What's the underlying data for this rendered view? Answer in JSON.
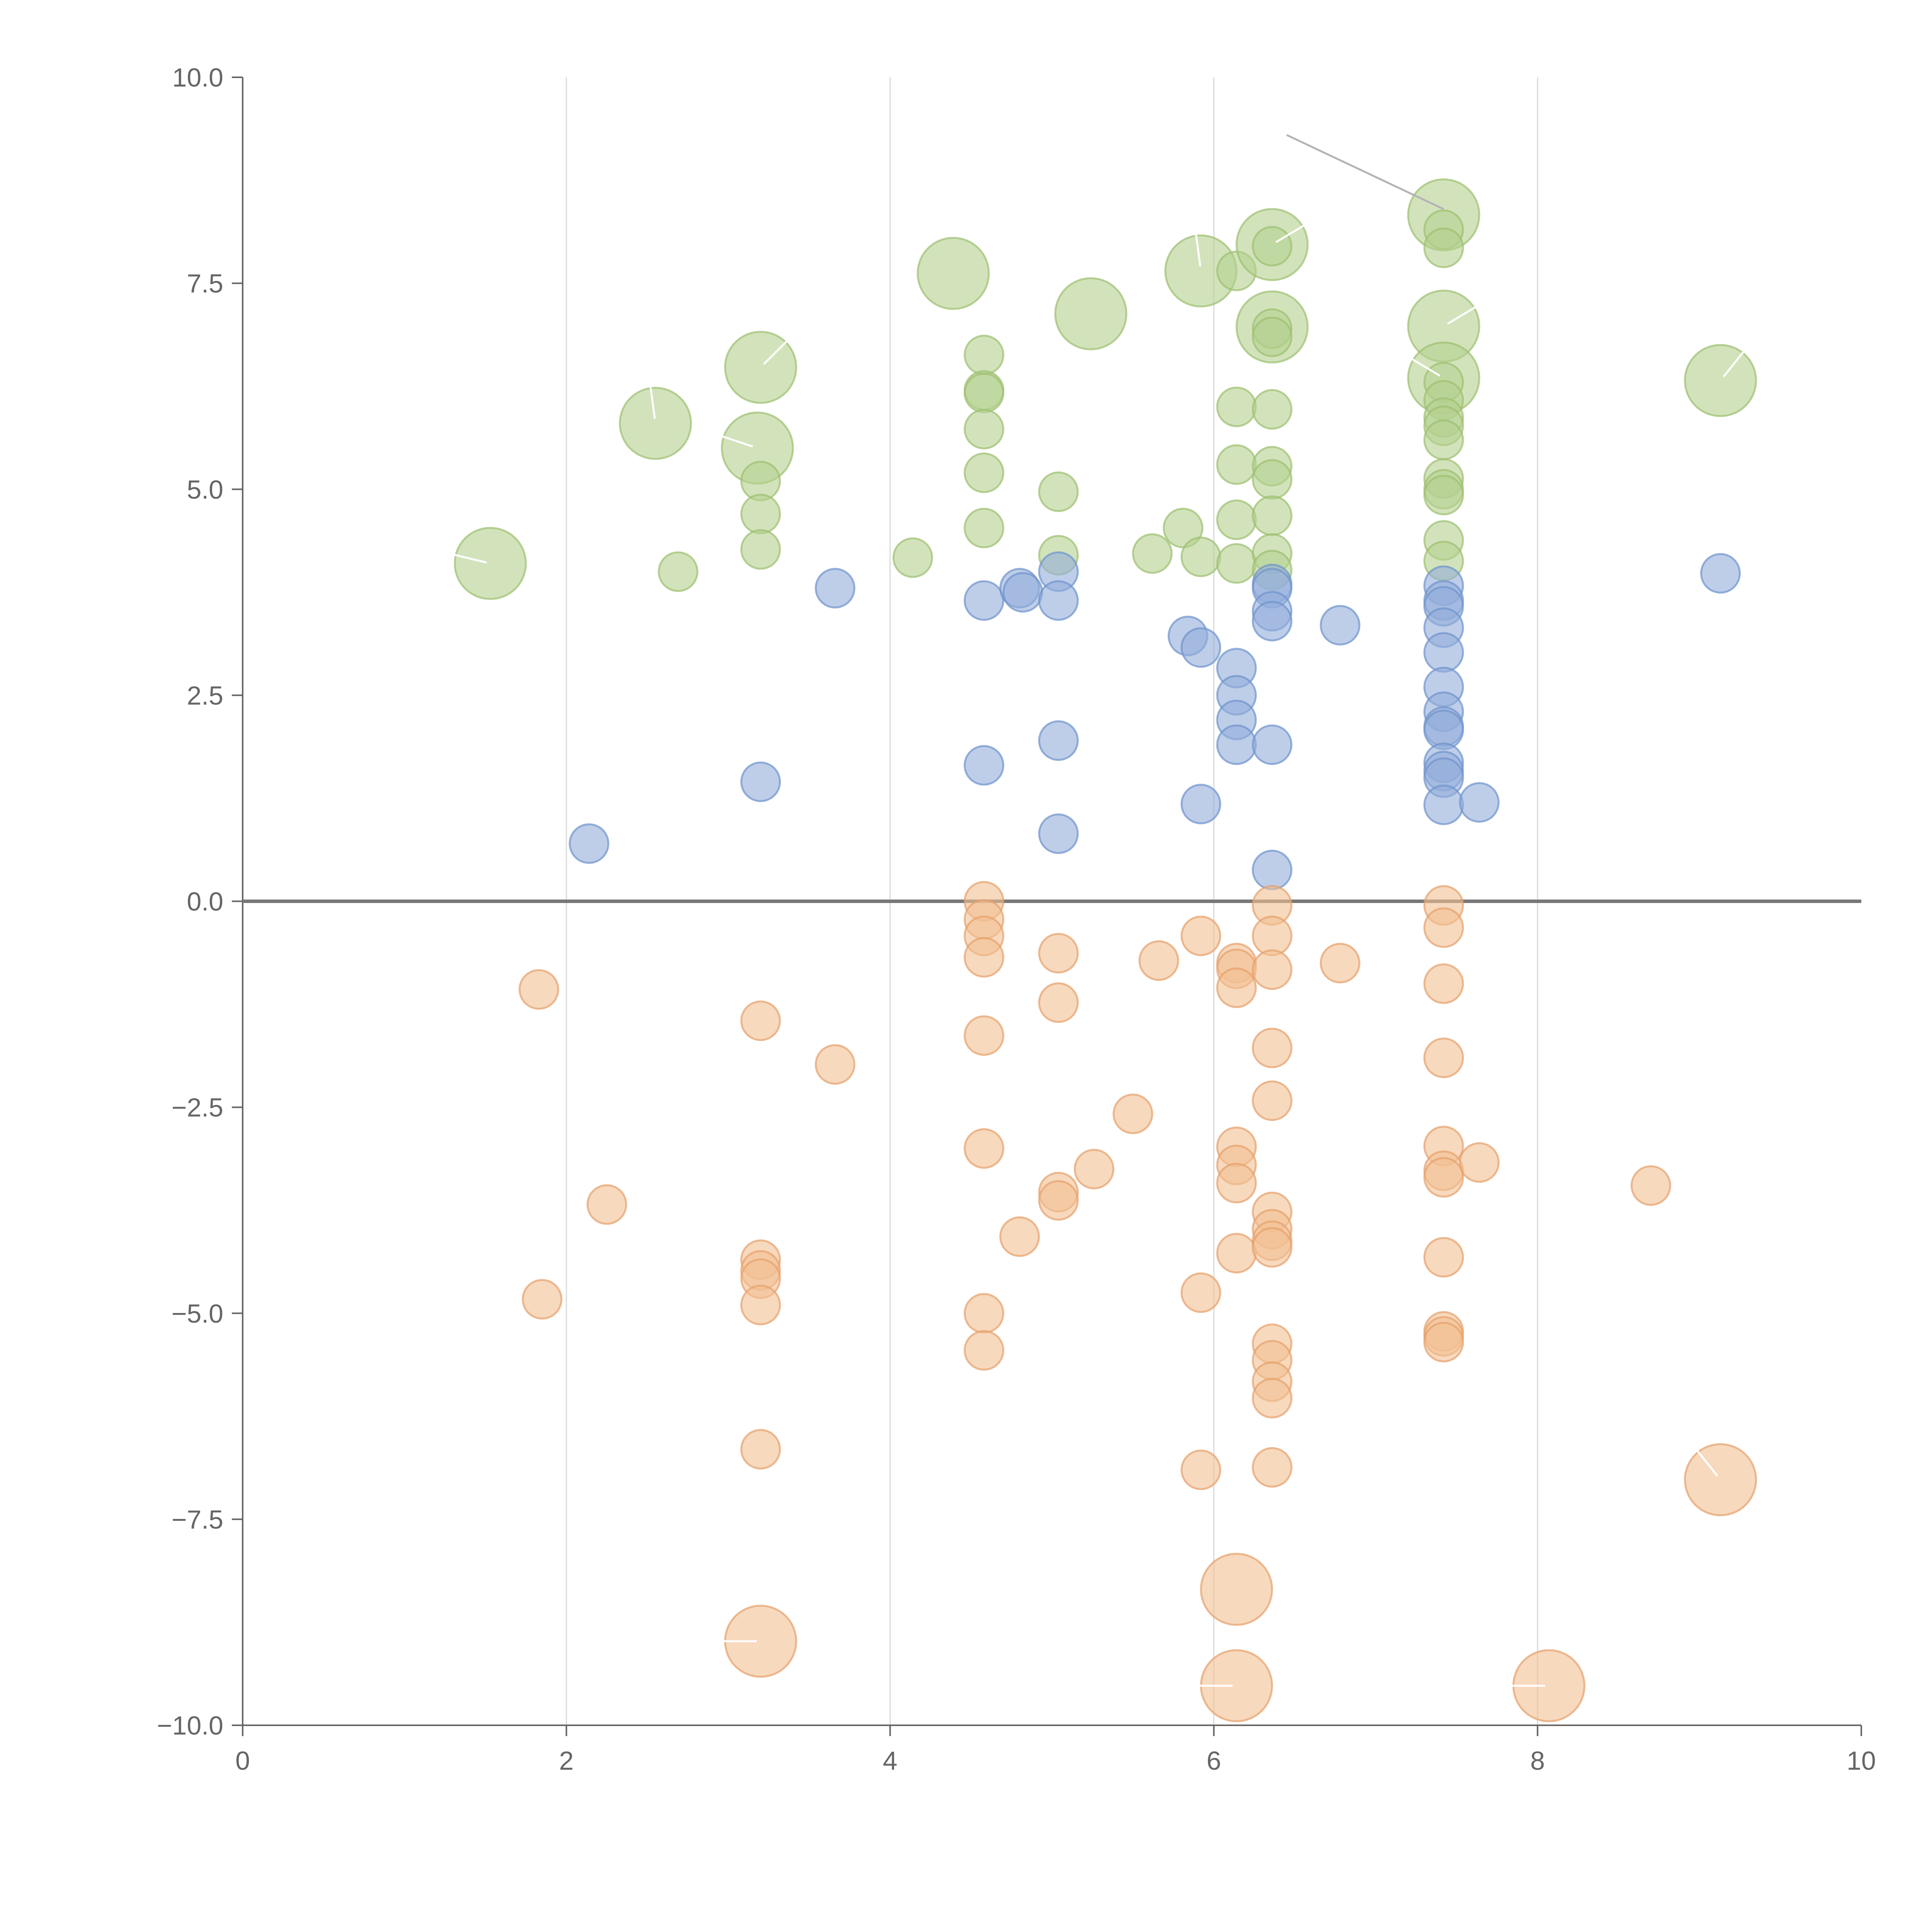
{
  "chart_data": {
    "type": "scatter",
    "title": "",
    "xlabel": "",
    "ylabel": "",
    "xlim": [
      0,
      10
    ],
    "ylim": [
      -10,
      10
    ],
    "x_ticks": [
      0,
      2,
      4,
      6,
      8,
      10
    ],
    "x_tick_labels": [
      "0",
      "2",
      "4",
      "6",
      "8",
      "10"
    ],
    "y_ticks": [
      -10,
      -7.5,
      -5,
      -2.5,
      0,
      2.5,
      5,
      7.5,
      10
    ],
    "y_tick_labels": [
      "−10.0",
      "−7.5",
      "−5.0",
      "−2.5",
      "0.0",
      "2.5",
      "5.0",
      "7.5",
      "10.0"
    ],
    "grid": {
      "vertical": true,
      "horizontal": false
    },
    "zero_line": true,
    "legend": "none",
    "bubble_size_note": "small = 1, large = 2",
    "series": [
      {
        "color": "#b4d08f",
        "stroke": "#9cbf6f",
        "points": [
          [
            1.53,
            4.1,
            2
          ],
          [
            2.55,
            5.8,
            2
          ],
          [
            2.69,
            4.0,
            1
          ],
          [
            3.2,
            6.48,
            2
          ],
          [
            3.18,
            5.5,
            2
          ],
          [
            3.2,
            5.1,
            1
          ],
          [
            3.2,
            4.7,
            1
          ],
          [
            3.2,
            4.27,
            1
          ],
          [
            4.14,
            4.17,
            1
          ],
          [
            4.39,
            7.62,
            2
          ],
          [
            4.58,
            6.63,
            1
          ],
          [
            4.58,
            6.2,
            1
          ],
          [
            4.58,
            6.17,
            1
          ],
          [
            4.58,
            5.73,
            1
          ],
          [
            4.58,
            5.2,
            1
          ],
          [
            4.58,
            4.53,
            1
          ],
          [
            5.04,
            4.97,
            1
          ],
          [
            5.04,
            4.2,
            1
          ],
          [
            5.24,
            7.13,
            2
          ],
          [
            5.62,
            4.22,
            1
          ],
          [
            5.81,
            4.53,
            1
          ],
          [
            5.92,
            7.65,
            2
          ],
          [
            5.92,
            4.18,
            1
          ],
          [
            6.14,
            7.65,
            1
          ],
          [
            6.14,
            6.0,
            1
          ],
          [
            6.14,
            5.3,
            1
          ],
          [
            6.14,
            4.63,
            1
          ],
          [
            6.14,
            4.1,
            1
          ],
          [
            6.36,
            7.97,
            2
          ],
          [
            6.36,
            7.95,
            1
          ],
          [
            6.36,
            6.97,
            2
          ],
          [
            6.36,
            6.95,
            1
          ],
          [
            6.36,
            6.85,
            1
          ],
          [
            6.36,
            5.97,
            1
          ],
          [
            6.36,
            5.28,
            1
          ],
          [
            6.36,
            5.12,
            1
          ],
          [
            6.36,
            4.68,
            1
          ],
          [
            6.36,
            4.22,
            1
          ],
          [
            6.36,
            4.02,
            1
          ],
          [
            7.42,
            8.33,
            2
          ],
          [
            7.42,
            8.15,
            1
          ],
          [
            7.42,
            7.93,
            1
          ],
          [
            7.42,
            6.98,
            2
          ],
          [
            7.42,
            6.35,
            2
          ],
          [
            7.42,
            6.3,
            1
          ],
          [
            7.42,
            6.08,
            1
          ],
          [
            7.42,
            5.87,
            1
          ],
          [
            7.42,
            5.77,
            1
          ],
          [
            7.42,
            5.6,
            1
          ],
          [
            7.42,
            5.13,
            1
          ],
          [
            7.42,
            5.0,
            1
          ],
          [
            7.42,
            4.93,
            1
          ],
          [
            7.42,
            4.38,
            1
          ],
          [
            7.42,
            4.13,
            1
          ],
          [
            9.13,
            6.32,
            2
          ]
        ]
      },
      {
        "color": "#92addb",
        "stroke": "#6e93cc",
        "points": [
          [
            2.14,
            0.7,
            1
          ],
          [
            3.2,
            1.45,
            1
          ],
          [
            3.66,
            3.8,
            1
          ],
          [
            4.58,
            3.65,
            1
          ],
          [
            4.58,
            1.65,
            1
          ],
          [
            4.8,
            3.8,
            1
          ],
          [
            4.82,
            3.75,
            1
          ],
          [
            5.04,
            4.0,
            1
          ],
          [
            5.04,
            3.65,
            1
          ],
          [
            5.04,
            1.95,
            1
          ],
          [
            5.04,
            0.82,
            1
          ],
          [
            5.84,
            3.22,
            1
          ],
          [
            5.92,
            3.08,
            1
          ],
          [
            5.92,
            1.18,
            1
          ],
          [
            6.14,
            2.83,
            1
          ],
          [
            6.14,
            2.5,
            1
          ],
          [
            6.14,
            2.2,
            1
          ],
          [
            6.14,
            1.9,
            1
          ],
          [
            6.36,
            3.85,
            1
          ],
          [
            6.36,
            3.8,
            1
          ],
          [
            6.36,
            3.52,
            1
          ],
          [
            6.36,
            3.4,
            1
          ],
          [
            6.36,
            1.9,
            1
          ],
          [
            6.36,
            0.38,
            1
          ],
          [
            6.78,
            3.35,
            1
          ],
          [
            7.42,
            3.83,
            1
          ],
          [
            7.42,
            3.65,
            1
          ],
          [
            7.42,
            3.58,
            1
          ],
          [
            7.42,
            3.32,
            1
          ],
          [
            7.42,
            3.02,
            1
          ],
          [
            7.42,
            2.6,
            1
          ],
          [
            7.42,
            2.3,
            1
          ],
          [
            7.42,
            2.12,
            1
          ],
          [
            7.42,
            2.08,
            1
          ],
          [
            7.42,
            1.68,
            1
          ],
          [
            7.42,
            1.58,
            1
          ],
          [
            7.42,
            1.5,
            1
          ],
          [
            7.42,
            1.17,
            1
          ],
          [
            7.64,
            1.2,
            1
          ],
          [
            9.13,
            3.98,
            1
          ]
        ]
      },
      {
        "color": "#f2bf92",
        "stroke": "#e5a06a",
        "points": [
          [
            1.83,
            -1.07,
            1
          ],
          [
            1.85,
            -4.83,
            1
          ],
          [
            2.25,
            -3.68,
            1
          ],
          [
            3.2,
            -1.45,
            1
          ],
          [
            3.2,
            -4.35,
            1
          ],
          [
            3.2,
            -4.48,
            1
          ],
          [
            3.2,
            -4.58,
            1
          ],
          [
            3.2,
            -4.9,
            1
          ],
          [
            3.2,
            -6.65,
            1
          ],
          [
            3.2,
            -8.98,
            2
          ],
          [
            3.66,
            -1.98,
            1
          ],
          [
            4.58,
            0.0,
            1
          ],
          [
            4.58,
            -0.22,
            1
          ],
          [
            4.58,
            -0.42,
            1
          ],
          [
            4.58,
            -0.68,
            1
          ],
          [
            4.58,
            -1.63,
            1
          ],
          [
            4.58,
            -3.0,
            1
          ],
          [
            4.58,
            -5.0,
            1
          ],
          [
            4.58,
            -5.45,
            1
          ],
          [
            4.8,
            -4.07,
            1
          ],
          [
            5.04,
            -0.63,
            1
          ],
          [
            5.04,
            -1.23,
            1
          ],
          [
            5.04,
            -3.53,
            1
          ],
          [
            5.04,
            -3.63,
            1
          ],
          [
            5.26,
            -3.25,
            1
          ],
          [
            5.5,
            -2.58,
            1
          ],
          [
            5.66,
            -0.72,
            1
          ],
          [
            5.92,
            -0.42,
            1
          ],
          [
            5.92,
            -4.75,
            1
          ],
          [
            5.92,
            -6.9,
            1
          ],
          [
            6.14,
            -0.75,
            1
          ],
          [
            6.14,
            -0.82,
            1
          ],
          [
            6.14,
            -1.05,
            1
          ],
          [
            6.14,
            -2.98,
            1
          ],
          [
            6.14,
            -3.2,
            1
          ],
          [
            6.14,
            -3.42,
            1
          ],
          [
            6.14,
            -4.27,
            1
          ],
          [
            6.14,
            -8.35,
            2
          ],
          [
            6.14,
            -9.52,
            2
          ],
          [
            6.36,
            -0.05,
            1
          ],
          [
            6.36,
            -0.42,
            1
          ],
          [
            6.36,
            -0.83,
            1
          ],
          [
            6.36,
            -1.78,
            1
          ],
          [
            6.36,
            -2.42,
            1
          ],
          [
            6.36,
            -3.77,
            1
          ],
          [
            6.36,
            -3.98,
            1
          ],
          [
            6.36,
            -4.12,
            1
          ],
          [
            6.36,
            -4.2,
            1
          ],
          [
            6.36,
            -5.37,
            1
          ],
          [
            6.36,
            -5.57,
            1
          ],
          [
            6.36,
            -5.83,
            1
          ],
          [
            6.36,
            -6.03,
            1
          ],
          [
            6.36,
            -6.87,
            1
          ],
          [
            6.78,
            -0.75,
            1
          ],
          [
            7.42,
            -0.05,
            1
          ],
          [
            7.42,
            -0.32,
            1
          ],
          [
            7.42,
            -1.0,
            1
          ],
          [
            7.42,
            -1.9,
            1
          ],
          [
            7.42,
            -2.97,
            1
          ],
          [
            7.42,
            -3.27,
            1
          ],
          [
            7.42,
            -3.35,
            1
          ],
          [
            7.42,
            -4.32,
            1
          ],
          [
            7.42,
            -5.22,
            1
          ],
          [
            7.42,
            -5.28,
            1
          ],
          [
            7.42,
            -5.35,
            1
          ],
          [
            7.64,
            -3.17,
            1
          ],
          [
            8.07,
            -9.52,
            2
          ],
          [
            8.7,
            -3.45,
            1
          ],
          [
            9.13,
            -7.02,
            2
          ]
        ]
      }
    ]
  }
}
